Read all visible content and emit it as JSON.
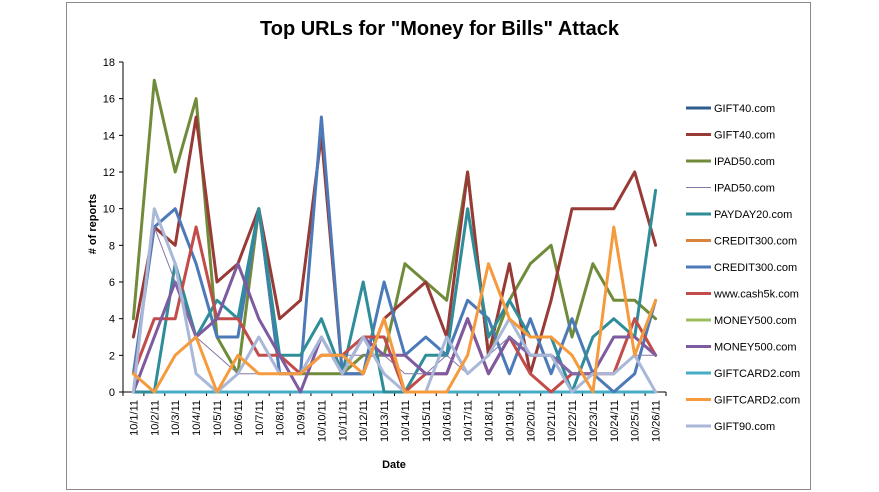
{
  "chart_data": {
    "type": "line",
    "title": "Top URLs for \"Money for Bills\" Attack",
    "xlabel": "Date",
    "ylabel": "# of reports",
    "ylim": [
      0,
      18
    ],
    "yticks": [
      0,
      2,
      4,
      6,
      8,
      10,
      12,
      14,
      16,
      18
    ],
    "grid": false,
    "legend_position": "right",
    "categories": [
      "10/1/11",
      "10/2/11",
      "10/3/11",
      "10/4/11",
      "10/5/11",
      "10/6/11",
      "10/7/11",
      "10/8/11",
      "10/9/11",
      "10/10/11",
      "10/11/11",
      "10/12/11",
      "10/13/11",
      "10/14/11",
      "10/15/11",
      "10/16/11",
      "10/17/11",
      "10/18/11",
      "10/19/11",
      "10/20/11",
      "10/21/11",
      "10/22/11",
      "10/23/11",
      "10/24/11",
      "10/25/11",
      "10/26/11"
    ],
    "series": [
      {
        "name": "GIFT40.com",
        "color": "#2f5e8e",
        "width": 3,
        "values": [
          0,
          0,
          0,
          0,
          0,
          0,
          0,
          0,
          0,
          0,
          0,
          0,
          0,
          0,
          0,
          0,
          0,
          0,
          0,
          0,
          0,
          0,
          0,
          0,
          0,
          0
        ]
      },
      {
        "name": "GIFT40.com",
        "color": "#983a36",
        "width": 3,
        "values": [
          3,
          9,
          8,
          15,
          6,
          7,
          10,
          4,
          5,
          14,
          1,
          1,
          4,
          5,
          6,
          3,
          12,
          2,
          7,
          1,
          5,
          10,
          10,
          10,
          12,
          8
        ]
      },
      {
        "name": "IPAD50.com",
        "color": "#708b3a",
        "width": 3,
        "values": [
          4,
          17,
          12,
          16,
          3,
          1,
          10,
          1,
          1,
          1,
          1,
          2,
          2,
          7,
          6,
          5,
          12,
          2,
          5,
          7,
          8,
          3,
          7,
          5,
          5,
          4
        ]
      },
      {
        "name": "IPAD50.com",
        "color": "#8676a8",
        "width": 1,
        "values": [
          1,
          9,
          6,
          3,
          2,
          1,
          1,
          1,
          1,
          2,
          2,
          2,
          2,
          1,
          1,
          2,
          1,
          2,
          3,
          2,
          2,
          1,
          1,
          1,
          2,
          2
        ]
      },
      {
        "name": "PAYDAY20.com",
        "color": "#2e8d99",
        "width": 3,
        "values": [
          0,
          0,
          7,
          3,
          5,
          4,
          10,
          2,
          2,
          4,
          1,
          6,
          0,
          0,
          2,
          2,
          10,
          3,
          5,
          3,
          3,
          0,
          3,
          4,
          3,
          11
        ]
      },
      {
        "name": "CREDIT300.com",
        "color": "#d9843c",
        "width": 3,
        "values": [
          0,
          0,
          0,
          0,
          0,
          0,
          0,
          0,
          0,
          0,
          0,
          0,
          0,
          0,
          0,
          0,
          0,
          0,
          0,
          0,
          0,
          0,
          0,
          0,
          0,
          0
        ]
      },
      {
        "name": "CREDIT300.com",
        "color": "#4c7ab8",
        "width": 3,
        "values": [
          1,
          9,
          10,
          7,
          3,
          3,
          10,
          1,
          1,
          15,
          1,
          1,
          6,
          2,
          3,
          2,
          5,
          4,
          1,
          4,
          1,
          4,
          1,
          0,
          1,
          5
        ]
      },
      {
        "name": "www.cash5k.com",
        "color": "#c14c4a",
        "width": 3,
        "values": [
          1,
          4,
          4,
          9,
          4,
          4,
          2,
          2,
          1,
          2,
          2,
          3,
          3,
          0,
          1,
          1,
          4,
          1,
          3,
          1,
          0,
          1,
          1,
          1,
          4,
          2
        ]
      },
      {
        "name": "MONEY500.com",
        "color": "#9bbc5a",
        "width": 3,
        "values": [
          0,
          0,
          0,
          0,
          0,
          0,
          0,
          0,
          0,
          0,
          0,
          0,
          0,
          0,
          0,
          0,
          0,
          0,
          0,
          0,
          0,
          0,
          0,
          0,
          0,
          0
        ]
      },
      {
        "name": "MONEY500.com",
        "color": "#7e5aa0",
        "width": 3,
        "values": [
          0,
          3,
          6,
          3,
          4,
          7,
          4,
          2,
          0,
          3,
          1,
          3,
          2,
          2,
          1,
          1,
          4,
          1,
          3,
          2,
          2,
          1,
          1,
          3,
          3,
          2
        ]
      },
      {
        "name": "GIFTCARD2.com",
        "color": "#47acc6",
        "width": 3,
        "values": [
          0,
          0,
          0,
          0,
          0,
          0,
          0,
          0,
          0,
          0,
          0,
          0,
          0,
          0,
          0,
          0,
          0,
          0,
          0,
          0,
          0,
          0,
          0,
          0,
          0,
          0
        ]
      },
      {
        "name": "GIFTCARD2.com",
        "color": "#f59b3e",
        "width": 3,
        "values": [
          1,
          0,
          2,
          3,
          0,
          2,
          1,
          1,
          1,
          2,
          2,
          1,
          4,
          0,
          0,
          0,
          2,
          7,
          4,
          3,
          3,
          2,
          0,
          9,
          2,
          5
        ]
      },
      {
        "name": "GIFT90.com",
        "color": "#a9b8d8",
        "width": 3,
        "values": [
          0,
          10,
          7,
          1,
          0,
          1,
          3,
          1,
          1,
          3,
          1,
          3,
          1,
          0,
          0,
          3,
          1,
          2,
          4,
          2,
          2,
          0,
          1,
          1,
          2,
          0
        ]
      }
    ]
  }
}
